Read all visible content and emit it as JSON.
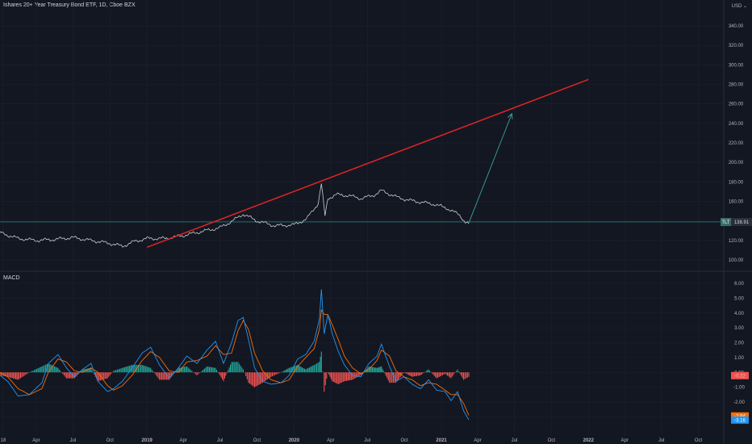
{
  "header": {
    "title": "Ishares 20+ Year Treasury Bond ETF, 1D, Cboe BZX",
    "currency": "USD"
  },
  "macd_panel": {
    "label": "MACD"
  },
  "colors": {
    "background": "#131722",
    "price_line": "#c9cdd5",
    "trendline": "#e02424",
    "projection_arrow": "#3aa3a0",
    "current_price_line": "#26a69a",
    "macd_line": "#2196f3",
    "signal_line": "#ff6d00",
    "hist_pos": "#26a69a",
    "hist_neg": "#ef5350",
    "grid": "#1e2230"
  },
  "price_badge": {
    "symbol": "TLT",
    "value": "138.91"
  },
  "macd_badges": [
    {
      "value": "-0.22",
      "color": "#ef5350",
      "text": "#f4b6b5"
    },
    {
      "value": "-2.94",
      "color": "#ff6d00",
      "text": "#ffffff"
    },
    {
      "value": "-3.16",
      "color": "#2196f3",
      "text": "#ffffff"
    }
  ],
  "chart_data": [
    {
      "type": "line",
      "title": "Ishares 20+ Year Treasury Bond ETF, 1D, Cboe BZX",
      "y_ticks": [
        "340.00",
        "320.00",
        "300.00",
        "280.00",
        "260.00",
        "240.00",
        "220.00",
        "200.00",
        "180.00",
        "160.00",
        "140.00",
        "120.00",
        "100.00"
      ],
      "ylim": [
        90,
        350
      ],
      "x_ticks": [
        "18",
        "Apr",
        "Jul",
        "Oct",
        "2019",
        "Apr",
        "Jul",
        "Oct",
        "2020",
        "Apr",
        "Jul",
        "Oct",
        "2021",
        "Apr",
        "Jul",
        "Oct",
        "2022",
        "Apr",
        "Jul",
        "Oct"
      ],
      "xlim": [
        "2018-01-01",
        "2022-12-31"
      ],
      "series": [
        {
          "x": [
            "2018-01-01",
            "2018-02-15",
            "2018-04-01",
            "2018-05-15",
            "2018-07-01",
            "2018-08-15",
            "2018-10-01",
            "2018-11-01",
            "2018-12-01",
            "2019-01-01",
            "2019-02-15",
            "2019-04-01",
            "2019-05-15",
            "2019-07-01",
            "2019-08-01",
            "2019-08-28",
            "2019-10-01",
            "2019-11-15",
            "2020-01-01",
            "2020-02-01",
            "2020-03-01",
            "2020-03-09",
            "2020-03-18",
            "2020-03-25",
            "2020-04-15",
            "2020-05-15",
            "2020-06-15",
            "2020-07-15",
            "2020-08-05",
            "2020-09-15",
            "2020-10-15",
            "2020-11-15",
            "2020-12-15",
            "2021-01-15",
            "2021-02-15",
            "2021-03-01",
            "2021-03-10"
          ],
          "y": [
            128,
            122,
            120,
            121,
            123,
            120,
            117,
            114,
            119,
            122,
            122,
            125,
            129,
            133,
            140,
            147,
            140,
            135,
            136,
            142,
            158,
            178,
            145,
            163,
            167,
            166,
            163,
            166,
            171,
            164,
            161,
            159,
            157,
            153,
            146,
            139,
            137
          ]
        }
      ],
      "annotations": [
        {
          "kind": "trendline",
          "from": {
            "x": "2019-01-01",
            "y": 113
          },
          "to": {
            "x": "2022-01-01",
            "y": 285
          }
        },
        {
          "kind": "projection_arrow",
          "from": {
            "x": "2021-03-10",
            "y": 138
          },
          "to": {
            "x": "2021-06-25",
            "y": 250
          }
        },
        {
          "kind": "current_price_line",
          "y": 138.91
        }
      ]
    },
    {
      "type": "line",
      "title": "MACD",
      "y_ticks": [
        "6.00",
        "5.00",
        "4.00",
        "3.00",
        "2.00",
        "1.00",
        "0.00",
        "-1.00",
        "-2.00",
        "-3.00"
      ],
      "ylim": [
        -3.5,
        6.5
      ],
      "x": [
        "2018-01-01",
        "2018-01-20",
        "2018-02-15",
        "2018-03-15",
        "2018-04-15",
        "2018-05-01",
        "2018-05-25",
        "2018-06-15",
        "2018-07-05",
        "2018-07-25",
        "2018-08-15",
        "2018-09-01",
        "2018-09-25",
        "2018-10-10",
        "2018-11-01",
        "2018-11-25",
        "2018-12-20",
        "2019-01-10",
        "2019-02-01",
        "2019-02-25",
        "2019-03-20",
        "2019-04-10",
        "2019-05-05",
        "2019-05-30",
        "2019-06-20",
        "2019-07-10",
        "2019-07-30",
        "2019-08-15",
        "2019-08-28",
        "2019-09-10",
        "2019-09-25",
        "2019-10-15",
        "2019-11-05",
        "2019-11-30",
        "2019-12-20",
        "2020-01-10",
        "2020-01-30",
        "2020-02-20",
        "2020-03-04",
        "2020-03-09",
        "2020-03-16",
        "2020-03-25",
        "2020-04-05",
        "2020-04-20",
        "2020-05-05",
        "2020-05-25",
        "2020-06-15",
        "2020-07-05",
        "2020-07-25",
        "2020-08-05",
        "2020-08-25",
        "2020-09-10",
        "2020-09-30",
        "2020-10-20",
        "2020-11-10",
        "2020-11-30",
        "2020-12-20",
        "2021-01-10",
        "2021-01-25",
        "2021-02-10",
        "2021-02-25",
        "2021-03-10"
      ],
      "series": [
        {
          "name": "MACD",
          "values": [
            -0.2,
            -0.6,
            -1.6,
            -1.5,
            -0.7,
            0.6,
            1.2,
            0.3,
            -0.3,
            0.2,
            0.6,
            -0.6,
            -1.3,
            -1.1,
            -0.6,
            0.3,
            1.3,
            1.7,
            0.5,
            -0.4,
            0.3,
            1.1,
            0.6,
            1.5,
            2.1,
            0.6,
            2.0,
            3.5,
            3.7,
            2.2,
            0.3,
            -0.6,
            -0.8,
            -0.7,
            -0.2,
            0.9,
            1.2,
            2.1,
            3.6,
            5.6,
            2.6,
            3.9,
            2.6,
            1.4,
            0.5,
            -0.2,
            -0.3,
            0.6,
            1.1,
            1.9,
            0.4,
            -0.6,
            -0.3,
            -0.8,
            -1.1,
            -0.5,
            -1.2,
            -1.3,
            -1.9,
            -1.3,
            -2.6,
            -3.2
          ]
        },
        {
          "name": "Signal",
          "values": [
            0.0,
            -0.3,
            -1.1,
            -1.5,
            -1.1,
            0.0,
            0.9,
            0.7,
            0.1,
            0.0,
            0.3,
            0.0,
            -0.9,
            -1.2,
            -0.9,
            -0.2,
            0.8,
            1.4,
            1.0,
            0.1,
            0.0,
            0.7,
            0.8,
            1.1,
            1.8,
            1.2,
            1.3,
            2.8,
            3.5,
            2.9,
            1.3,
            0.1,
            -0.5,
            -0.7,
            -0.5,
            0.4,
            1.0,
            1.6,
            2.9,
            4.2,
            3.9,
            3.9,
            3.2,
            2.2,
            1.1,
            0.3,
            -0.1,
            0.2,
            0.8,
            1.5,
            1.1,
            0.1,
            -0.3,
            -0.5,
            -0.9,
            -0.7,
            -0.8,
            -1.2,
            -1.5,
            -1.5,
            -2.1,
            -2.9
          ]
        }
      ]
    }
  ]
}
